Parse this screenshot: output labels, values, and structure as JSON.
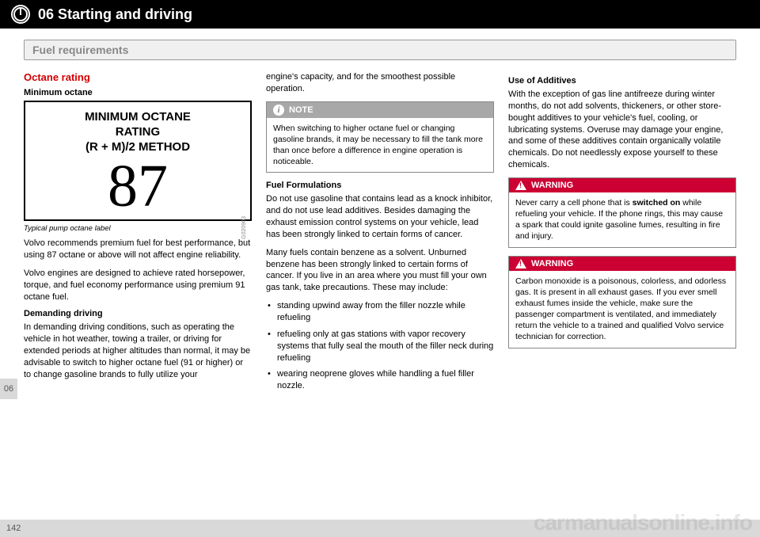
{
  "header": {
    "chapter": "06 Starting and driving"
  },
  "section_title": "Fuel requirements",
  "side_tab": "06",
  "page_number": "142",
  "watermark": "carmanualsonline.info",
  "col1": {
    "h1": "Octane rating",
    "h2": "Minimum octane",
    "octane": {
      "line1": "MINIMUM OCTANE",
      "line2": "RATING",
      "line3": "(R + M)/2 METHOD",
      "value": "87",
      "side": "G020903"
    },
    "caption": "Typical pump octane label",
    "p1": "Volvo recommends premium fuel for best performance, but using 87 octane or above will not affect engine reliability.",
    "p2": "Volvo engines are designed to achieve rated horsepower, torque, and fuel economy performance using premium 91 octane fuel.",
    "h3": "Demanding driving",
    "p3": "In demanding driving conditions, such as operating the vehicle in hot weather, towing a trailer, or driving for extended periods at higher altitudes than normal, it may be advisable to switch to higher octane fuel (91 or higher) or to change gasoline brands to fully utilize your"
  },
  "col2": {
    "p1": "engine's capacity, and for the smoothest possible operation.",
    "note_label": "NOTE",
    "note_body": "When switching to higher octane fuel or changing gasoline brands, it may be necessary to fill the tank more than once before a difference in engine operation is noticeable.",
    "h1": "Fuel Formulations",
    "p2": "Do not use gasoline that contains lead as a knock inhibitor, and do not use lead additives. Besides damaging the exhaust emission control systems on your vehicle, lead has been strongly linked to certain forms of cancer.",
    "p3": "Many fuels contain benzene as a solvent. Unburned benzene has been strongly linked to certain forms of cancer. If you live in an area where you must fill your own gas tank, take precautions. These may include:",
    "bullets": [
      "standing upwind away from the filler nozzle while refueling",
      "refueling only at gas stations with vapor recovery systems that fully seal the mouth of the filler neck during refueling",
      "wearing neoprene gloves while handling a fuel filler nozzle."
    ]
  },
  "col3": {
    "h1": "Use of Additives",
    "p1": "With the exception of gas line antifreeze during winter months, do not add solvents, thickeners, or other store-bought additives to your vehicle's fuel, cooling, or lubricating systems. Overuse may damage your engine, and some of these additives contain organically volatile chemicals. Do not needlessly expose yourself to these chemicals.",
    "warn_label": "WARNING",
    "warn1_body_a": "Never carry a cell phone that is ",
    "warn1_body_b": "switched on",
    "warn1_body_c": " while refueling your vehicle. If the phone rings, this may cause a spark that could ignite gasoline fumes, resulting in fire and injury.",
    "warn2_body": "Carbon monoxide is a poisonous, colorless, and odorless gas. It is present in all exhaust gases. If you ever smell exhaust fumes inside the vehicle, make sure the passenger compartment is ventilated, and immediately return the vehicle to a trained and qualified Volvo service technician for correction."
  }
}
